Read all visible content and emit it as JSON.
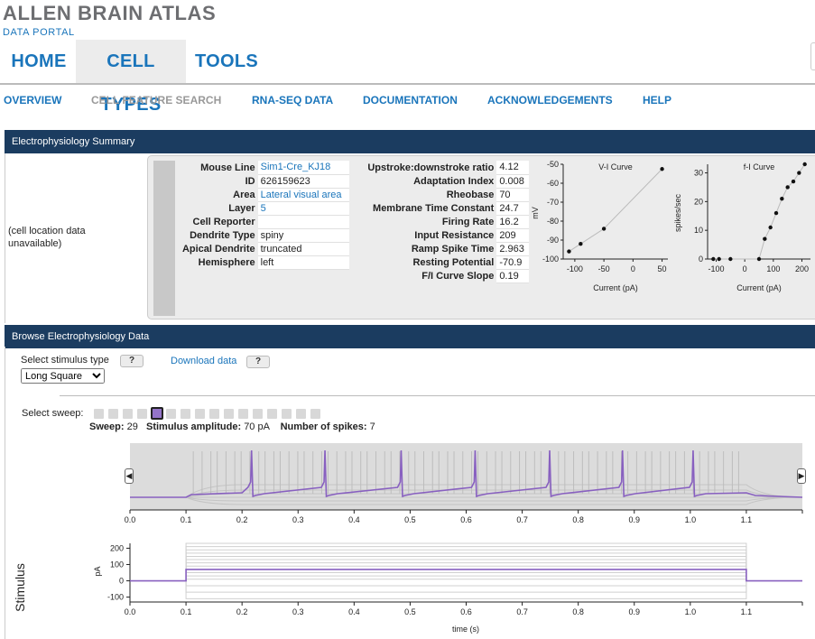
{
  "brand": {
    "title": "ALLEN BRAIN ATLAS",
    "subtitle": "DATA PORTAL"
  },
  "nav": {
    "tabs": [
      {
        "label": "HOME",
        "active": false
      },
      {
        "label": "CELL TYPES",
        "active": true
      },
      {
        "label": "TOOLS",
        "active": false
      }
    ]
  },
  "subnav": [
    {
      "label": "OVERVIEW",
      "active": false
    },
    {
      "label": "CELL FEATURE SEARCH",
      "active": true
    },
    {
      "label": "RNA-SEQ DATA",
      "active": false
    },
    {
      "label": "DOCUMENTATION",
      "active": false
    },
    {
      "label": "ACKNOWLEDGEMENTS",
      "active": false
    },
    {
      "label": "HELP",
      "active": false
    }
  ],
  "ephys_summary": {
    "title": "Electrophysiology Summary",
    "cell_location": [
      "(cell location data",
      "unavailable)"
    ],
    "metadata": [
      {
        "key": "Mouse Line",
        "value": "Sim1-Cre_KJ18",
        "link": true
      },
      {
        "key": "ID",
        "value": "626159623",
        "link": false
      },
      {
        "key": "Area",
        "value": "Lateral visual area",
        "link": true
      },
      {
        "key": "Layer",
        "value": "5",
        "link": true
      },
      {
        "key": "Cell Reporter",
        "value": "",
        "link": false
      },
      {
        "key": "Dendrite Type",
        "value": "spiny",
        "link": false
      },
      {
        "key": "Apical Dendrite",
        "value": "truncated",
        "link": false
      },
      {
        "key": "Hemisphere",
        "value": "left",
        "link": false
      }
    ],
    "features": [
      {
        "key": "Upstroke:downstroke ratio",
        "value": "4.12"
      },
      {
        "key": "Adaptation Index",
        "value": "0.008"
      },
      {
        "key": "Rheobase",
        "value": "70"
      },
      {
        "key": "Membrane Time Constant",
        "value": "24.7"
      },
      {
        "key": "Firing Rate",
        "value": "16.2"
      },
      {
        "key": "Input Resistance",
        "value": "209"
      },
      {
        "key": "Ramp Spike Time",
        "value": "2.963"
      },
      {
        "key": "Resting Potential",
        "value": "-70.9"
      },
      {
        "key": "F/I Curve Slope",
        "value": "0.19"
      }
    ]
  },
  "chart_data": [
    {
      "type": "scatter",
      "title": "V-I Curve",
      "xlabel": "Current (pA)",
      "ylabel": "mV",
      "xlim": [
        -120,
        60
      ],
      "ylim": [
        -100,
        -50
      ],
      "xticks": [
        "-100",
        "-50",
        "0",
        "50"
      ],
      "yticks": [
        "-50",
        "-60",
        "-70",
        "-80",
        "-90",
        "-100"
      ],
      "x": [
        -110,
        -90,
        -50,
        50
      ],
      "y": [
        -96,
        -92,
        -84,
        -52.5
      ]
    },
    {
      "type": "scatter",
      "title": "f-I Curve",
      "xlabel": "Current (pA)",
      "ylabel": "spikes/sec",
      "xlim": [
        -130,
        230
      ],
      "ylim": [
        0,
        33
      ],
      "xticks": [
        "-100",
        "0",
        "100",
        "200"
      ],
      "yticks": [
        "30",
        "20",
        "10",
        "0"
      ],
      "x": [
        -110,
        -90,
        -50,
        50,
        70,
        90,
        110,
        130,
        150,
        170,
        190,
        210
      ],
      "y": [
        0,
        0,
        0,
        0,
        7,
        11,
        16,
        21,
        25,
        27,
        30,
        33
      ]
    },
    {
      "type": "line",
      "title": "",
      "xlabel": "",
      "ylabel": "",
      "xlim": [
        0,
        1.2
      ],
      "xticks": [
        "0.0",
        "0.1",
        "0.2",
        "0.3",
        "0.4",
        "0.5",
        "0.6",
        "0.7",
        "0.8",
        "0.9",
        "1.0",
        "1.1"
      ],
      "series": [
        {
          "name": "",
          "spike_times": [
            0.217,
            0.348,
            0.484,
            0.616,
            0.749,
            0.879,
            1.005
          ]
        }
      ]
    },
    {
      "type": "line",
      "title": "",
      "xlabel": "time (s)",
      "ylabel": "pA",
      "side_label": "Stimulus",
      "xlim": [
        0,
        1.2
      ],
      "ylim": [
        -130,
        230
      ],
      "xticks": [
        "0.0",
        "0.1",
        "0.2",
        "0.3",
        "0.4",
        "0.5",
        "0.6",
        "0.7",
        "0.8",
        "0.9",
        "1.0",
        "1.1"
      ],
      "yticks": [
        "200",
        "100",
        "0",
        "-100"
      ],
      "series": [
        {
          "name": "",
          "amplitude": 70,
          "start": 0.1,
          "end": 1.1
        }
      ]
    }
  ],
  "browse": {
    "title": "Browse Electrophysiology Data",
    "stimulus_label": "Select stimulus type",
    "help_label": "?",
    "download_label": "Download data",
    "stimulus_selected": "Long Square",
    "sweep_label": "Select sweep:",
    "sweep_count": 16,
    "sweep_active_index": 4,
    "sweep_key": "Sweep:",
    "sweep_value": "29",
    "amp_key": "Stimulus amplitude:",
    "amp_value": "70 pA",
    "spikes_key": "Number of spikes:",
    "spikes_value": "7",
    "prev_label": "◀",
    "next_label": "▶"
  },
  "colors": {
    "accent": "#1a75bb",
    "header_bar": "#1b3c60",
    "trace": "#8860c0",
    "trace_gray": "#b0b0b0"
  }
}
